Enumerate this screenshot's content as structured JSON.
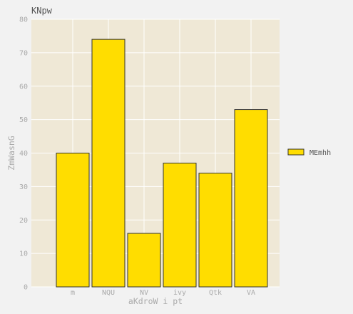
{
  "chart_data": {
    "type": "bar",
    "title": "KNpw",
    "xlabel": "aKdroW i pt",
    "ylabel": "ZmWasnG",
    "categories": [
      "m",
      "NQU",
      "NV",
      "ivy",
      "Qtk",
      "VA"
    ],
    "series": [
      {
        "name": "MEmhh",
        "values": [
          40,
          74,
          16,
          37,
          34,
          53
        ],
        "color": "#ffdd00"
      }
    ],
    "ylim": [
      0,
      80
    ],
    "yticks": [
      0,
      10,
      20,
      30,
      40,
      50,
      60,
      70,
      80
    ],
    "grid": true,
    "legend_position": "right"
  },
  "colors": {
    "plot_background": "#efe8d6",
    "page_background": "#f2f2f2",
    "grid": "#ffffff",
    "bar_edge": "#333333"
  }
}
